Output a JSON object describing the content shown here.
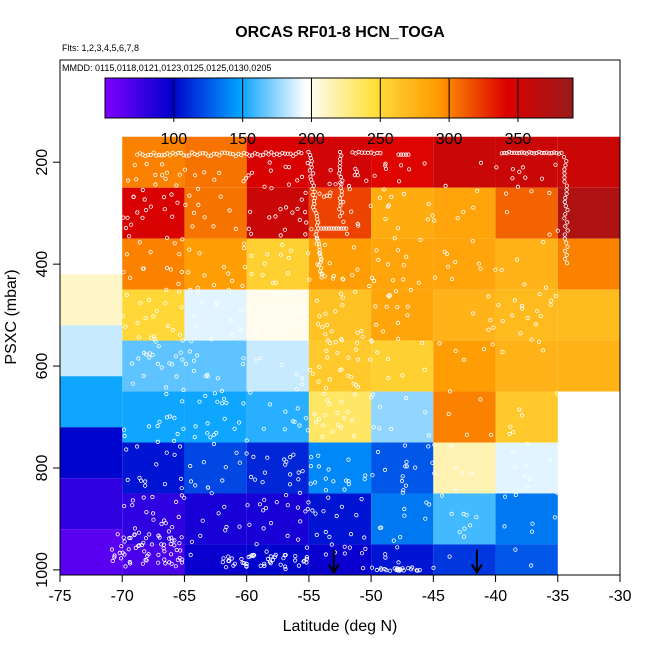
{
  "chart_data": {
    "type": "heatmap",
    "title": "ORCAS RF01-8 HCN_TOGA",
    "subtitle_flights": "Flts: 1,2,3,4,5,6,7,8",
    "subtitle_dates": "MMDD: 0115,0118,0121,0123,0125,0125,0130,0205",
    "xlabel": "Latitude (deg N)",
    "ylabel": "PSXC (mbar)",
    "xlim": [
      -75,
      -30
    ],
    "ylim": [
      1010,
      0
    ],
    "y_reversed": true,
    "xticks": [
      -75,
      -70,
      -65,
      -60,
      -55,
      -50,
      -45,
      -40,
      -35,
      -30
    ],
    "yticks": [
      200,
      400,
      600,
      800,
      1000
    ],
    "colorbar": {
      "min": 50,
      "max": 390,
      "ticks": [
        100,
        150,
        200,
        250,
        300,
        350
      ],
      "colors": [
        "#7f00ff",
        "#0000cc",
        "#00a0ff",
        "#ffffff",
        "#ffe040",
        "#ff9900",
        "#dd0000",
        "#991a1a"
      ]
    },
    "x_bins": [
      -70,
      -65,
      -60,
      -55,
      -50,
      -45,
      -40,
      -35
    ],
    "y_bins": [
      150,
      250,
      350,
      450,
      550,
      650,
      750,
      850,
      950,
      1000
    ],
    "cells": [
      [
        -70,
        150,
        250,
        300
      ],
      [
        -65,
        150,
        250,
        305
      ],
      [
        -60,
        150,
        250,
        345
      ],
      [
        -55,
        150,
        250,
        350
      ],
      [
        -50,
        150,
        250,
        340
      ],
      [
        -45,
        150,
        250,
        355
      ],
      [
        -40,
        150,
        250,
        355
      ],
      [
        -35,
        150,
        250,
        355
      ],
      [
        -70,
        250,
        350,
        345
      ],
      [
        -65,
        250,
        350,
        305
      ],
      [
        -60,
        250,
        350,
        355
      ],
      [
        -55,
        250,
        350,
        320
      ],
      [
        -50,
        250,
        350,
        280
      ],
      [
        -45,
        250,
        350,
        285
      ],
      [
        -40,
        250,
        350,
        310
      ],
      [
        -35,
        250,
        350,
        375
      ],
      [
        -70,
        350,
        450,
        300
      ],
      [
        -65,
        350,
        450,
        290
      ],
      [
        -60,
        350,
        450,
        255
      ],
      [
        -55,
        350,
        450,
        290
      ],
      [
        -50,
        350,
        450,
        285
      ],
      [
        -45,
        350,
        450,
        285
      ],
      [
        -40,
        350,
        450,
        275
      ],
      [
        -35,
        350,
        450,
        300
      ],
      [
        -75,
        420,
        520,
        210
      ],
      [
        -70,
        450,
        550,
        250
      ],
      [
        -65,
        450,
        550,
        190
      ],
      [
        -60,
        450,
        550,
        200
      ],
      [
        -55,
        450,
        550,
        265
      ],
      [
        -50,
        450,
        550,
        285
      ],
      [
        -45,
        450,
        550,
        275
      ],
      [
        -40,
        450,
        550,
        270
      ],
      [
        -35,
        450,
        550,
        270
      ],
      [
        -75,
        520,
        620,
        185
      ],
      [
        -70,
        550,
        650,
        165
      ],
      [
        -65,
        550,
        650,
        165
      ],
      [
        -60,
        550,
        650,
        185
      ],
      [
        -55,
        550,
        650,
        260
      ],
      [
        -50,
        550,
        650,
        255
      ],
      [
        -45,
        550,
        650,
        290
      ],
      [
        -40,
        550,
        650,
        275
      ],
      [
        -35,
        550,
        650,
        275
      ],
      [
        -75,
        620,
        720,
        150
      ],
      [
        -70,
        650,
        750,
        150
      ],
      [
        -65,
        650,
        750,
        150
      ],
      [
        -60,
        650,
        750,
        155
      ],
      [
        -55,
        650,
        750,
        235
      ],
      [
        -50,
        650,
        750,
        175
      ],
      [
        -45,
        650,
        750,
        300
      ],
      [
        -40,
        650,
        750,
        260
      ],
      [
        -75,
        720,
        820,
        100
      ],
      [
        -70,
        750,
        850,
        105
      ],
      [
        -65,
        750,
        850,
        120
      ],
      [
        -60,
        750,
        850,
        110
      ],
      [
        -55,
        750,
        850,
        140
      ],
      [
        -50,
        750,
        850,
        125
      ],
      [
        -45,
        750,
        850,
        215
      ],
      [
        -40,
        750,
        850,
        190
      ],
      [
        -75,
        820,
        920,
        80
      ],
      [
        -70,
        850,
        950,
        80
      ],
      [
        -65,
        850,
        950,
        90
      ],
      [
        -60,
        850,
        950,
        90
      ],
      [
        -55,
        850,
        950,
        105
      ],
      [
        -50,
        850,
        950,
        135
      ],
      [
        -45,
        850,
        950,
        160
      ],
      [
        -40,
        850,
        950,
        135
      ],
      [
        -75,
        920,
        1010,
        65
      ],
      [
        -70,
        950,
        1010,
        70
      ],
      [
        -65,
        950,
        1010,
        95
      ],
      [
        -60,
        950,
        1010,
        100
      ],
      [
        -55,
        950,
        1010,
        95
      ],
      [
        -50,
        950,
        1010,
        105
      ],
      [
        -45,
        950,
        1010,
        115
      ],
      [
        -40,
        950,
        1010,
        125
      ]
    ],
    "arrows": [
      {
        "lat": -53,
        "p_top": 960,
        "p_bottom": 1005
      },
      {
        "lat": -41.5,
        "p_top": 960,
        "p_bottom": 1005
      }
    ],
    "samples_overlay": true
  }
}
